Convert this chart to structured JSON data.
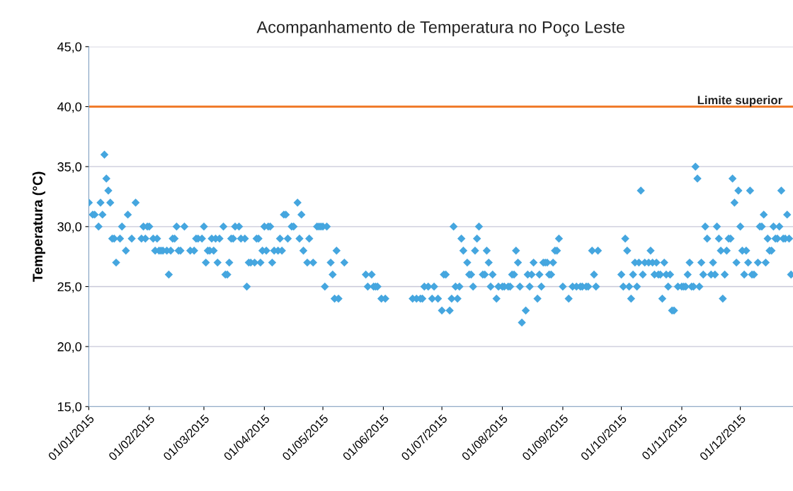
{
  "chart_data": {
    "type": "scatter",
    "title": "Acompanhamento de Temperatura no Poço Leste",
    "ylabel": "Temperatura (°C)",
    "marker": "diamond",
    "grid": "y",
    "xlim": [
      "2015-01-01",
      "2015-12-28"
    ],
    "xticks": [
      {
        "value": "2015-01-01",
        "label": "01/01/2015"
      },
      {
        "value": "2015-02-01",
        "label": "01/02/2015"
      },
      {
        "value": "2015-03-01",
        "label": "01/03/2015"
      },
      {
        "value": "2015-04-01",
        "label": "01/04/2015"
      },
      {
        "value": "2015-05-01",
        "label": "01/05/2015"
      },
      {
        "value": "2015-06-01",
        "label": "01/06/2015"
      },
      {
        "value": "2015-07-01",
        "label": "01/07/2015"
      },
      {
        "value": "2015-08-01",
        "label": "01/08/2015"
      },
      {
        "value": "2015-09-01",
        "label": "01/09/2015"
      },
      {
        "value": "2015-10-01",
        "label": "01/10/2015"
      },
      {
        "value": "2015-11-01",
        "label": "01/11/2015"
      },
      {
        "value": "2015-12-01",
        "label": "01/12/2015"
      }
    ],
    "ylim": [
      15,
      45
    ],
    "yticks": [
      {
        "value": 15,
        "label": "15,0"
      },
      {
        "value": 20,
        "label": "20,0"
      },
      {
        "value": 25,
        "label": "25,0"
      },
      {
        "value": 30,
        "label": "30,0"
      },
      {
        "value": 35,
        "label": "35,0"
      },
      {
        "value": 40,
        "label": "40,0"
      },
      {
        "value": 45,
        "label": "45,0"
      }
    ],
    "ref_lines": [
      {
        "axis": "y",
        "value": 40,
        "label": "Limite superior",
        "color": "#f07c2c"
      }
    ],
    "series": [
      {
        "color": "#45a6df",
        "x": [
          "2015-01-01",
          "2015-01-03",
          "2015-01-04",
          "2015-01-06",
          "2015-01-07",
          "2015-01-08",
          "2015-01-09",
          "2015-01-10",
          "2015-01-11",
          "2015-01-12",
          "2015-01-13",
          "2015-01-14",
          "2015-01-15",
          "2015-01-17",
          "2015-01-18",
          "2015-01-20",
          "2015-01-21",
          "2015-01-23",
          "2015-01-25",
          "2015-01-28",
          "2015-01-29",
          "2015-01-30",
          "2015-01-31",
          "2015-02-01",
          "2015-02-03",
          "2015-02-04",
          "2015-02-05",
          "2015-02-06",
          "2015-02-07",
          "2015-02-08",
          "2015-02-10",
          "2015-02-11",
          "2015-02-12",
          "2015-02-13",
          "2015-02-14",
          "2015-02-15",
          "2015-02-16",
          "2015-02-17",
          "2015-02-19",
          "2015-02-22",
          "2015-02-24",
          "2015-02-25",
          "2015-02-26",
          "2015-02-28",
          "2015-03-01",
          "2015-03-02",
          "2015-03-03",
          "2015-03-04",
          "2015-03-05",
          "2015-03-06",
          "2015-03-07",
          "2015-03-08",
          "2015-03-09",
          "2015-03-11",
          "2015-03-12",
          "2015-03-13",
          "2015-03-14",
          "2015-03-15",
          "2015-03-16",
          "2015-03-17",
          "2015-03-19",
          "2015-03-20",
          "2015-03-22",
          "2015-03-23",
          "2015-03-24",
          "2015-03-25",
          "2015-03-27",
          "2015-03-28",
          "2015-03-29",
          "2015-03-30",
          "2015-03-31",
          "2015-04-01",
          "2015-04-02",
          "2015-04-03",
          "2015-04-04",
          "2015-04-05",
          "2015-04-06",
          "2015-04-08",
          "2015-04-09",
          "2015-04-10",
          "2015-04-11",
          "2015-04-12",
          "2015-04-13",
          "2015-04-15",
          "2015-04-16",
          "2015-04-18",
          "2015-04-19",
          "2015-04-20",
          "2015-04-21",
          "2015-04-23",
          "2015-04-24",
          "2015-04-26",
          "2015-04-28",
          "2015-04-29",
          "2015-04-30",
          "2015-05-01",
          "2015-05-02",
          "2015-05-03",
          "2015-05-05",
          "2015-05-06",
          "2015-05-07",
          "2015-05-08",
          "2015-05-09",
          "2015-05-12",
          "2015-05-23",
          "2015-05-24",
          "2015-05-26",
          "2015-05-27",
          "2015-05-28",
          "2015-05-29",
          "2015-05-31",
          "2015-06-02",
          "2015-06-16",
          "2015-06-18",
          "2015-06-20",
          "2015-06-21",
          "2015-06-22",
          "2015-06-24",
          "2015-06-26",
          "2015-06-27",
          "2015-06-29",
          "2015-07-01",
          "2015-07-02",
          "2015-07-03",
          "2015-07-05",
          "2015-07-06",
          "2015-07-07",
          "2015-07-08",
          "2015-07-09",
          "2015-07-10",
          "2015-07-11",
          "2015-07-12",
          "2015-07-14",
          "2015-07-15",
          "2015-07-16",
          "2015-07-17",
          "2015-07-18",
          "2015-07-19",
          "2015-07-20",
          "2015-07-22",
          "2015-07-23",
          "2015-07-24",
          "2015-07-25",
          "2015-07-26",
          "2015-07-27",
          "2015-07-29",
          "2015-07-30",
          "2015-08-01",
          "2015-08-02",
          "2015-08-04",
          "2015-08-05",
          "2015-08-06",
          "2015-08-07",
          "2015-08-08",
          "2015-08-09",
          "2015-08-10",
          "2015-08-11",
          "2015-08-13",
          "2015-08-14",
          "2015-08-15",
          "2015-08-16",
          "2015-08-17",
          "2015-08-19",
          "2015-08-20",
          "2015-08-21",
          "2015-08-22",
          "2015-08-23",
          "2015-08-24",
          "2015-08-25",
          "2015-08-26",
          "2015-08-27",
          "2015-08-28",
          "2015-08-29",
          "2015-08-30",
          "2015-09-01",
          "2015-09-04",
          "2015-09-06",
          "2015-09-08",
          "2015-09-10",
          "2015-09-11",
          "2015-09-13",
          "2015-09-14",
          "2015-09-16",
          "2015-09-17",
          "2015-09-18",
          "2015-09-19",
          "2015-10-01",
          "2015-10-02",
          "2015-10-03",
          "2015-10-04",
          "2015-10-05",
          "2015-10-06",
          "2015-10-07",
          "2015-10-08",
          "2015-10-09",
          "2015-10-10",
          "2015-10-11",
          "2015-10-12",
          "2015-10-13",
          "2015-10-15",
          "2015-10-16",
          "2015-10-17",
          "2015-10-18",
          "2015-10-19",
          "2015-10-20",
          "2015-10-21",
          "2015-10-22",
          "2015-10-23",
          "2015-10-24",
          "2015-10-25",
          "2015-10-26",
          "2015-10-27",
          "2015-10-28",
          "2015-10-30",
          "2015-11-01",
          "2015-11-02",
          "2015-11-03",
          "2015-11-04",
          "2015-11-05",
          "2015-11-06",
          "2015-11-07",
          "2015-11-08",
          "2015-11-09",
          "2015-11-10",
          "2015-11-11",
          "2015-11-12",
          "2015-11-13",
          "2015-11-14",
          "2015-11-16",
          "2015-11-17",
          "2015-11-18",
          "2015-11-19",
          "2015-11-20",
          "2015-11-21",
          "2015-11-22",
          "2015-11-23",
          "2015-11-24",
          "2015-11-25",
          "2015-11-26",
          "2015-11-27",
          "2015-11-28",
          "2015-11-29",
          "2015-11-30",
          "2015-12-01",
          "2015-12-02",
          "2015-12-03",
          "2015-12-04",
          "2015-12-05",
          "2015-12-06",
          "2015-12-07",
          "2015-12-08",
          "2015-12-10",
          "2015-12-11",
          "2015-12-12",
          "2015-12-13",
          "2015-12-14",
          "2015-12-15",
          "2015-12-16",
          "2015-12-17",
          "2015-12-18",
          "2015-12-19",
          "2015-12-20",
          "2015-12-21",
          "2015-12-22",
          "2015-12-23",
          "2015-12-24",
          "2015-12-25",
          "2015-12-26",
          "2015-12-27"
        ],
        "values": [
          32,
          31,
          31,
          30,
          32,
          31,
          36,
          34,
          33,
          32,
          29,
          29,
          27,
          29,
          30,
          28,
          31,
          29,
          32,
          29,
          30,
          29,
          30,
          30,
          29,
          28,
          29,
          28,
          28,
          28,
          28,
          26,
          28,
          29,
          29,
          30,
          28,
          28,
          30,
          28,
          28,
          29,
          29,
          29,
          30,
          27,
          28,
          28,
          29,
          28,
          29,
          27,
          29,
          30,
          26,
          26,
          27,
          29,
          29,
          30,
          30,
          29,
          29,
          25,
          27,
          27,
          27,
          29,
          29,
          27,
          28,
          30,
          28,
          30,
          30,
          27,
          28,
          28,
          29,
          28,
          31,
          31,
          29,
          30,
          30,
          32,
          29,
          31,
          28,
          27,
          29,
          27,
          30,
          30,
          30,
          30,
          25,
          30,
          27,
          26,
          24,
          28,
          24,
          27,
          26,
          25,
          26,
          25,
          25,
          25,
          24,
          24,
          24,
          24,
          24,
          24,
          25,
          25,
          24,
          25,
          24,
          23,
          26,
          26,
          23,
          24,
          30,
          25,
          24,
          25,
          29,
          28,
          27,
          26,
          26,
          25,
          28,
          29,
          30,
          26,
          26,
          28,
          27,
          25,
          26,
          24,
          25,
          25,
          25,
          25,
          25,
          26,
          26,
          28,
          27,
          25,
          22,
          23,
          26,
          25,
          26,
          27,
          24,
          26,
          25,
          27,
          27,
          27,
          26,
          26,
          27,
          28,
          28,
          29,
          25,
          24,
          25,
          25,
          25,
          25,
          25,
          25,
          28,
          26,
          25,
          28,
          26,
          25,
          29,
          28,
          25,
          24,
          26,
          27,
          25,
          27,
          33,
          26,
          27,
          27,
          28,
          27,
          26,
          27,
          26,
          26,
          24,
          27,
          26,
          25,
          26,
          23,
          23,
          25,
          25,
          25,
          25,
          26,
          27,
          25,
          25,
          35,
          34,
          25,
          27,
          26,
          30,
          29,
          26,
          27,
          26,
          30,
          29,
          28,
          24,
          26,
          28,
          29,
          29,
          34,
          32,
          27,
          33,
          30,
          28,
          26,
          28,
          27,
          33,
          26,
          26,
          27,
          30,
          30,
          31,
          27,
          29,
          28,
          28,
          30,
          29,
          29,
          30,
          33,
          29,
          29,
          31,
          29,
          26
        ]
      }
    ]
  }
}
